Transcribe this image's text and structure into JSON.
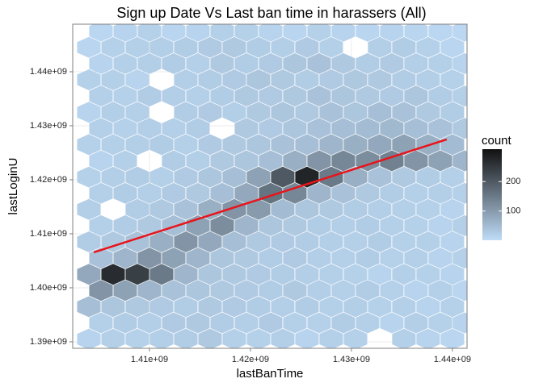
{
  "chart_data": {
    "type": "hexbin",
    "title": "Sign up Date Vs Last ban time in harassers (All)",
    "x_label": "lastBanTime",
    "y_label": "lastLoginU",
    "xlim": [
      1402400000,
      1441450000
    ],
    "ylim": [
      1388800000,
      1448800000
    ],
    "xticks": [
      {
        "value": 1410000000,
        "label": "1.41e+09"
      },
      {
        "value": 1420000000,
        "label": "1.42e+09"
      },
      {
        "value": 1430000000,
        "label": "1.43e+09"
      },
      {
        "value": 1440000000,
        "label": "1.44e+09"
      }
    ],
    "yticks": [
      {
        "value": 1390000000,
        "label": "1.39e+09"
      },
      {
        "value": 1400000000,
        "label": "1.40e+09"
      },
      {
        "value": 1410000000,
        "label": "1.41e+09"
      },
      {
        "value": 1420000000,
        "label": "1.42e+09"
      },
      {
        "value": 1430000000,
        "label": "1.43e+09"
      },
      {
        "value": 1440000000,
        "label": "1.44e+09"
      }
    ],
    "grid": true,
    "legend": {
      "title": "count",
      "position": "right",
      "colorlim": [
        1,
        310
      ],
      "ticks": [
        100,
        200
      ],
      "low_color": "#bfdcf7",
      "high_color": "#111111"
    },
    "hex": {
      "x_even": [
        1404000000,
        1406400000,
        1408800000,
        1411200000,
        1413600000,
        1416000000,
        1418400000,
        1420800000,
        1423200000,
        1425600000,
        1428000000,
        1430400000,
        1432800000,
        1435200000,
        1437600000,
        1440000000
      ],
      "x_odd": [
        1405200000,
        1407600000,
        1410000000,
        1412400000,
        1414800000,
        1417200000,
        1419600000,
        1422000000,
        1424400000,
        1426800000,
        1429200000,
        1431600000,
        1434000000,
        1436400000,
        1438800000,
        1441200000
      ],
      "y": [
        1390500000,
        1393500000,
        1396500000,
        1399500000,
        1402500000,
        1405500000,
        1408500000,
        1411500000,
        1414500000,
        1417500000,
        1420500000,
        1423500000,
        1426500000,
        1429500000,
        1432500000,
        1435500000,
        1438500000,
        1441500000,
        1444500000,
        1447500000
      ],
      "counts": [
        [
          15,
          20,
          18,
          22,
          25,
          30,
          20,
          18,
          22,
          15,
          20,
          18,
          null,
          20,
          15,
          12
        ],
        [
          20,
          25,
          22,
          28,
          30,
          25,
          22,
          28,
          20,
          18,
          25,
          20,
          15,
          22,
          18,
          15
        ],
        [
          45,
          35,
          30,
          28,
          25,
          30,
          28,
          25,
          22,
          25,
          20,
          22,
          18,
          20,
          15,
          18
        ],
        [
          110,
          90,
          60,
          40,
          35,
          30,
          28,
          25,
          30,
          22,
          20,
          25,
          18,
          15,
          20,
          12
        ],
        [
          80,
          270,
          240,
          150,
          60,
          35,
          30,
          28,
          25,
          22,
          20,
          18,
          15,
          20,
          18,
          15
        ],
        [
          40,
          60,
          110,
          90,
          60,
          35,
          30,
          25,
          28,
          22,
          20,
          25,
          18,
          20,
          15,
          18
        ],
        [
          25,
          30,
          40,
          70,
          110,
          80,
          45,
          30,
          28,
          25,
          22,
          20,
          25,
          18,
          20,
          15
        ],
        [
          20,
          25,
          30,
          45,
          90,
          120,
          60,
          35,
          30,
          25,
          22,
          25,
          20,
          18,
          15,
          20
        ],
        [
          22,
          null,
          25,
          30,
          40,
          70,
          110,
          100,
          50,
          35,
          30,
          25,
          22,
          20,
          18,
          15
        ],
        [
          20,
          25,
          22,
          28,
          30,
          45,
          80,
          160,
          130,
          60,
          40,
          30,
          25,
          20,
          22,
          18
        ],
        [
          18,
          22,
          25,
          20,
          28,
          35,
          45,
          90,
          200,
          280,
          150,
          70,
          40,
          30,
          25,
          20
        ],
        [
          15,
          20,
          null,
          25,
          22,
          30,
          35,
          45,
          70,
          110,
          130,
          120,
          140,
          110,
          90,
          60
        ],
        [
          18,
          20,
          22,
          25,
          20,
          28,
          30,
          35,
          40,
          45,
          60,
          70,
          80,
          90,
          70,
          50
        ],
        [
          20,
          18,
          22,
          20,
          25,
          null,
          30,
          28,
          35,
          40,
          45,
          50,
          55,
          45,
          40,
          30
        ],
        [
          15,
          22,
          20,
          null,
          25,
          28,
          22,
          30,
          35,
          30,
          40,
          35,
          45,
          40,
          30,
          25
        ],
        [
          20,
          18,
          25,
          22,
          20,
          25,
          30,
          28,
          32,
          40,
          35,
          30,
          28,
          35,
          25,
          20
        ],
        [
          18,
          20,
          15,
          null,
          22,
          25,
          28,
          35,
          30,
          25,
          28,
          32,
          30,
          25,
          22,
          18
        ],
        [
          15,
          20,
          22,
          25,
          20,
          30,
          25,
          28,
          35,
          40,
          30,
          25,
          28,
          22,
          20,
          15
        ],
        [
          12,
          18,
          20,
          22,
          25,
          28,
          30,
          25,
          22,
          28,
          20,
          null,
          22,
          25,
          18,
          12
        ],
        [
          10,
          15,
          18,
          12,
          15,
          20,
          18,
          15,
          12,
          18,
          15,
          12,
          15,
          12,
          10,
          8
        ]
      ]
    },
    "trend": {
      "x": [
        1404490000,
        1439440000
      ],
      "y": [
        1406570000,
        1427460000
      ],
      "color": "#e8141b"
    }
  }
}
